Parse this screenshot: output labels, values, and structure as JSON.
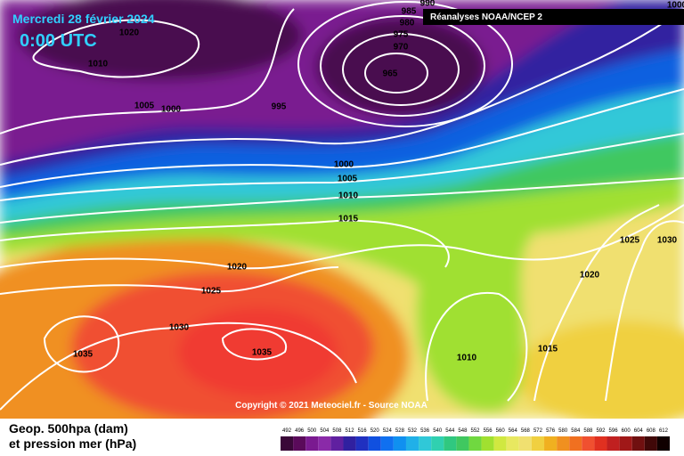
{
  "header": {
    "date": "Mercredi 28 février 2024",
    "time": "0:00 UTC",
    "source": "Réanalyses NOAA/NCEP 2"
  },
  "isobar_labels": [
    "1020",
    "1010",
    "1005",
    "1000",
    "995",
    "990",
    "985",
    "980",
    "975",
    "970",
    "965",
    "1000",
    "1005",
    "1010",
    "1015",
    "1020",
    "1025",
    "1030",
    "1035",
    "1035",
    "1010",
    "1015",
    "1020",
    "1025",
    "1030",
    "1000"
  ],
  "copyright": "Copyright © 2021 Meteociel.fr - Source NOAA",
  "footer": {
    "line1": "Geop. 500hpa (dam)",
    "line2": "et pression mer (hPa)"
  },
  "legend": {
    "labels": [
      492,
      496,
      500,
      504,
      508,
      512,
      516,
      520,
      524,
      528,
      532,
      536,
      540,
      544,
      548,
      552,
      556,
      560,
      564,
      568,
      572,
      576,
      580,
      584,
      588,
      592,
      596,
      600,
      604,
      608,
      612
    ],
    "colors": [
      "#3a0838",
      "#5a0a5a",
      "#7a1a90",
      "#8a2aa8",
      "#6020a0",
      "#3020a0",
      "#2030c0",
      "#1050e0",
      "#1070f0",
      "#1090f0",
      "#20b0e8",
      "#30c8d8",
      "#30d0b0",
      "#30c880",
      "#40c860",
      "#70d840",
      "#a0e030",
      "#d0e840",
      "#e8e860",
      "#f0e070",
      "#f0d040",
      "#f0b020",
      "#f09020",
      "#f07020",
      "#f05030",
      "#e03020",
      "#c02020",
      "#a01818",
      "#701010",
      "#400808",
      "#100000"
    ]
  }
}
